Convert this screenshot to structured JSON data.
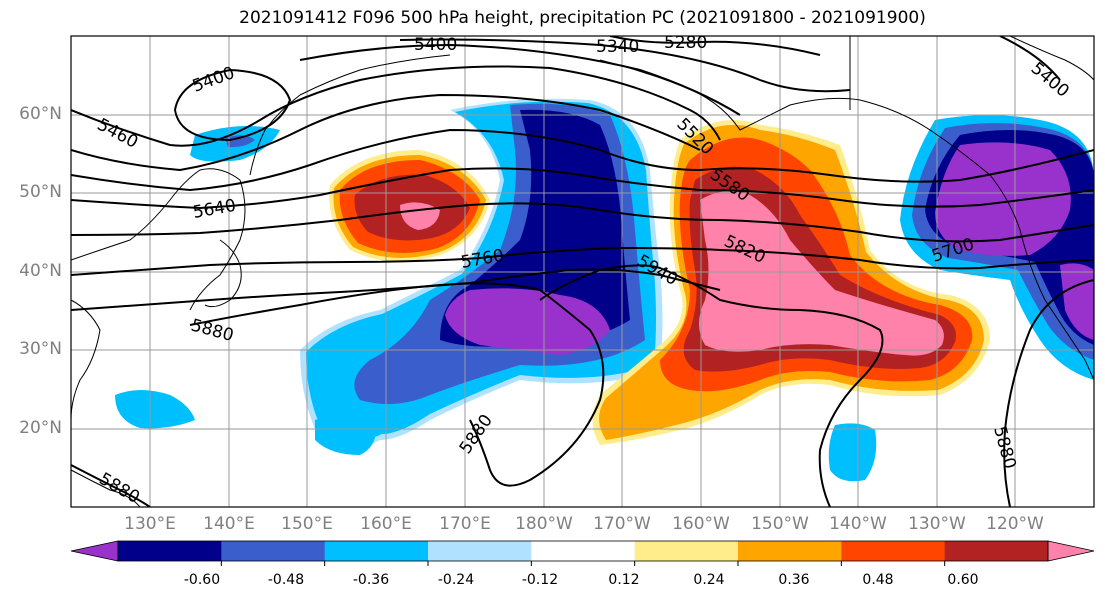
{
  "title": "2021091412 F096 500 hPa height, precipitation PC (2021091800 - 2021091900)",
  "lat_labels": [
    "60°N",
    "50°N",
    "40°N",
    "30°N",
    "20°N"
  ],
  "lon_labels": [
    "130°E",
    "140°E",
    "150°E",
    "160°E",
    "170°E",
    "180°W",
    "170°W",
    "160°W",
    "150°W",
    "140°W",
    "130°W",
    "120°W"
  ],
  "contour_labels": [
    "5400",
    "5340",
    "5280",
    "5400",
    "5460",
    "5520",
    "5580",
    "5640",
    "5700",
    "5760",
    "5820",
    "5880",
    "5940",
    "5880",
    "5880",
    "5880",
    "5400"
  ],
  "colorbar": {
    "labels": [
      "-0.60",
      "-0.48",
      "-0.36",
      "-0.24",
      "-0.12",
      "0.12",
      "0.24",
      "0.36",
      "0.48",
      "0.60"
    ],
    "colors": [
      "#9932CC",
      "#00008B",
      "#3A5FCD",
      "#00BFFF",
      "#B0E2FF",
      "#FFFFFF",
      "#FFEC8B",
      "#FFA500",
      "#FF4500",
      "#B22222",
      "#FF82AB"
    ]
  },
  "colors": {
    "purple": "#9932CC",
    "navy": "#00008B",
    "royal": "#3A5FCD",
    "sky": "#00BFFF",
    "lightblue": "#B0E2FF",
    "yellow": "#FFEC8B",
    "orange": "#FFA500",
    "redorange": "#FF4500",
    "darkred": "#B22222",
    "pink": "#FF82AB"
  }
}
